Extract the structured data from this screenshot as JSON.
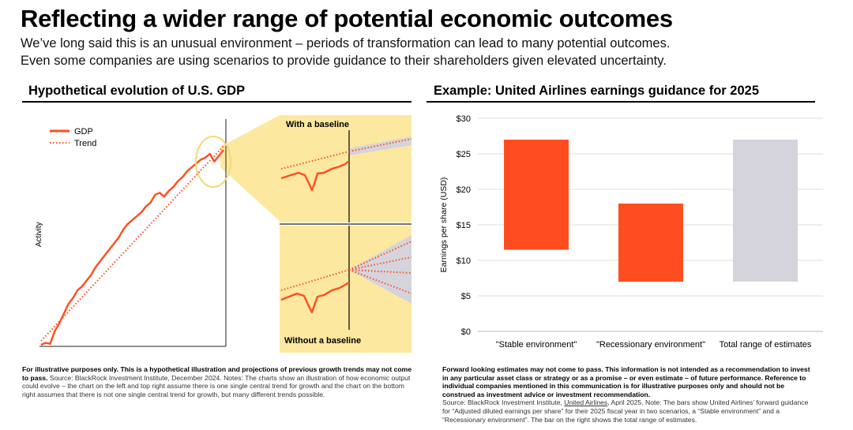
{
  "header": {
    "title": "Reflecting a wider range of potential economic outcomes",
    "subtitle_line1": "We’ve long said this is an unusual environment – periods of transformation can lead to many potential outcomes.",
    "subtitle_line2": "Even some companies are using scenarios to provide guidance to their shareholders given elevated uncertainty."
  },
  "left_panel": {
    "title": "Hypothetical evolution of U.S. GDP",
    "ylabel": "Activity",
    "legend": {
      "gdp": "GDP",
      "trend": "Trend"
    },
    "inset_top_label": "With a baseline",
    "inset_bottom_label": "Without a baseline",
    "note_bold": "For illustrative purposes only. This is a hypothetical illustration and projections of previous growth trends may not come to pass.",
    "note_text": " Source: BlackRock Investment Institute, December 2024. Notes: The charts show an illustration of how economic output could evolve – the chart on the left and top right assume there is one single central trend for growth and the chart on the bottom right assumes that there is not one single central trend for growth, but many different trends possible."
  },
  "right_panel": {
    "title": "Example: United Airlines earnings guidance for 2025",
    "note_bold": "Forward looking estimates may not come to pass. This information is not intended as a recommendation to invest in any particular asset class or strategy or as a promise – or even estimate – of future performance. Reference to individual companies mentioned in this communication is for illustrative purposes only and should not be construed as investment advice or investment recommendation.",
    "note_text_a": "Source: BlackRock Investment Institute, ",
    "note_link": "United Airlines",
    "note_text_b": ", April 2025. Note: The bars show United Airlines’ forward guidance for “Adjusted diluted earnings per share” for their 2025 fiscal year in two scenarios, a “Stable environment” and a “Recessionary environment”. The bar on the right shows the total range of estimates."
  },
  "colors": {
    "accent": "#ff4d1f",
    "highlight": "#fde8a0",
    "highlight_border": "#f5d67a",
    "range_gray": "#d5d4dc",
    "gridline": "#dddddd"
  },
  "chart_data": [
    {
      "type": "line",
      "title": "Hypothetical evolution of U.S. GDP",
      "ylabel": "Activity",
      "xlabel": "",
      "series": [
        {
          "name": "GDP",
          "style": "solid",
          "x": [
            0,
            1,
            2,
            3,
            4,
            5,
            6,
            7,
            8,
            9,
            10,
            11,
            12,
            13,
            14,
            15,
            16,
            17,
            18,
            19,
            20,
            21,
            22,
            23,
            24,
            25,
            26,
            27,
            28,
            29,
            30,
            31,
            32,
            33,
            34,
            35,
            36,
            37,
            38,
            39,
            40
          ],
          "y": [
            0,
            1,
            0.5,
            7,
            11,
            16,
            21,
            24,
            28,
            30,
            33,
            36,
            40,
            43,
            46,
            49,
            52,
            55,
            59,
            62,
            64,
            66,
            68,
            71,
            73,
            77,
            78,
            76,
            79,
            81,
            84,
            86,
            89,
            91,
            93,
            95,
            96,
            98,
            94,
            97,
            100
          ]
        },
        {
          "name": "Trend",
          "style": "dotted",
          "x": [
            0,
            40
          ],
          "y": [
            2,
            102
          ]
        }
      ],
      "grid": false,
      "legend_position": "top-left"
    },
    {
      "type": "bar",
      "title": "Example: United Airlines earnings guidance for 2025",
      "ylabel": "Earnings per share (USD)",
      "xlabel": "",
      "categories": [
        "\"Stable environment\"",
        "\"Recessionary environment\"",
        "Total range of estimates"
      ],
      "series": [
        {
          "low": [
            11.5,
            7,
            7
          ],
          "high": [
            27,
            18,
            27
          ]
        }
      ],
      "bar_colors": [
        "#ff4d1f",
        "#ff4d1f",
        "#d5d4dc"
      ],
      "yticks": [
        "$0",
        "$5",
        "$10",
        "$15",
        "$20",
        "$25",
        "$30"
      ],
      "ytick_values": [
        0,
        5,
        10,
        15,
        20,
        25,
        30
      ],
      "ylim": [
        0,
        30
      ],
      "grid": true
    }
  ]
}
